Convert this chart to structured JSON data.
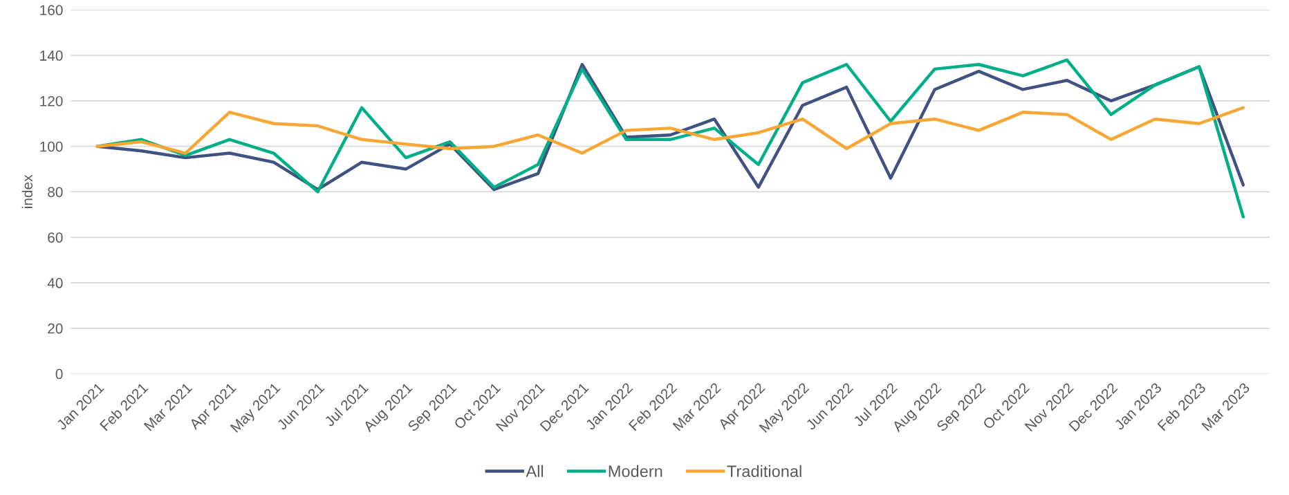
{
  "chart_data": {
    "type": "line",
    "ylabel": "index",
    "categories": [
      "Jan 2021",
      "Feb 2021",
      "Mar 2021",
      "Apr 2021",
      "May 2021",
      "Jun 2021",
      "Jul 2021",
      "Aug 2021",
      "Sep 2021",
      "Oct 2021",
      "Nov 2021",
      "Dec 2021",
      "Jan 2022",
      "Feb 2022",
      "Mar 2022",
      "Apr 2022",
      "May 2022",
      "Jun 2022",
      "Jul 2022",
      "Aug 2022",
      "Sep 2022",
      "Oct 2022",
      "Nov 2022",
      "Dec 2022",
      "Jan 2023",
      "Feb 2023",
      "Mar 2023"
    ],
    "series": [
      {
        "name": "All",
        "color": "#3f5281",
        "values": [
          100,
          98,
          95,
          97,
          93,
          81,
          93,
          90,
          101,
          81,
          88,
          136,
          104,
          105,
          112,
          82,
          118,
          126,
          86,
          125,
          133,
          125,
          129,
          120,
          127,
          135,
          83
        ]
      },
      {
        "name": "Modern",
        "color": "#00af87",
        "values": [
          100,
          103,
          96,
          103,
          97,
          80,
          117,
          95,
          102,
          82,
          92,
          134,
          103,
          103,
          108,
          92,
          128,
          136,
          111,
          134,
          136,
          131,
          138,
          114,
          127,
          135,
          69
        ]
      },
      {
        "name": "Traditional",
        "color": "#faa634",
        "values": [
          100,
          102,
          97,
          115,
          110,
          109,
          103,
          101,
          99,
          100,
          105,
          97,
          107,
          108,
          103,
          106,
          112,
          99,
          110,
          112,
          107,
          115,
          114,
          103,
          112,
          110,
          117
        ]
      }
    ],
    "ylim": [
      0,
      160
    ],
    "yticks": [
      0,
      20,
      40,
      60,
      80,
      100,
      120,
      140,
      160
    ],
    "grid": "y",
    "legend": "bottom",
    "line_style": "solid",
    "marker": "none"
  }
}
